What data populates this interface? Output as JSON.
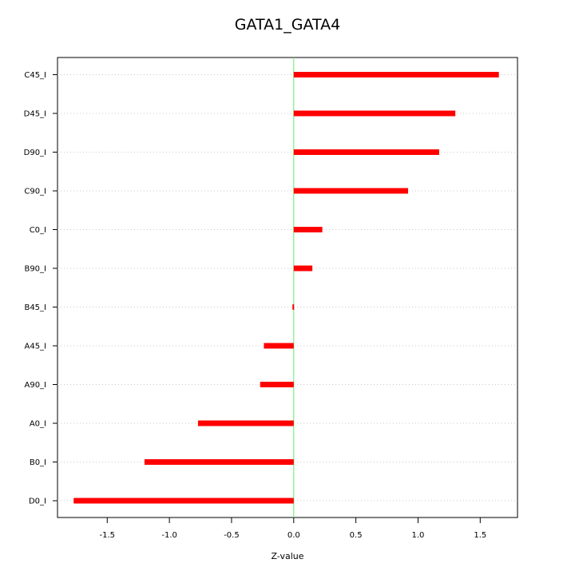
{
  "chart_data": {
    "type": "bar",
    "orientation": "horizontal",
    "title": "GATA1_GATA4",
    "xlabel": "Z-value",
    "ylabel": "",
    "categories": [
      "C45_I",
      "D45_I",
      "D90_I",
      "C90_I",
      "C0_I",
      "B90_I",
      "B45_I",
      "A45_I",
      "A90_I",
      "A0_I",
      "B0_I",
      "D0_I"
    ],
    "values": [
      1.65,
      1.3,
      1.17,
      0.92,
      0.23,
      0.15,
      -0.01,
      -0.24,
      -0.27,
      -0.77,
      -1.2,
      -1.77
    ],
    "xlim": [
      -1.9,
      1.8
    ],
    "xticks": [
      "-1.5",
      "-1.0",
      "-0.5",
      "0.0",
      "0.5",
      "1.0",
      "1.5"
    ],
    "xtick_values": [
      -1.5,
      -1.0,
      -0.5,
      0.0,
      0.5,
      1.0,
      1.5
    ],
    "grid": "horizontal-dotted",
    "reference_line": 0.0,
    "colors": {
      "bar": "#ff0000",
      "reference": "#66ee66",
      "grid": "#c8c8c8"
    }
  }
}
